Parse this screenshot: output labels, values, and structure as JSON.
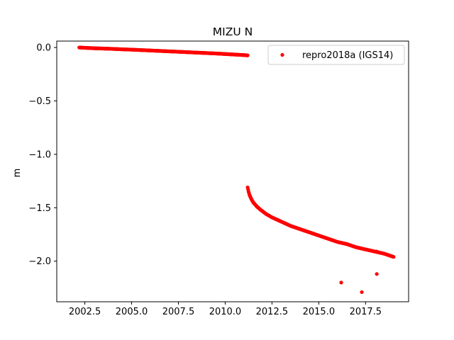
{
  "chart_data": {
    "type": "scatter",
    "title": "MIZU N",
    "xlabel": "",
    "ylabel": "m",
    "xlim": [
      2001.0,
      2019.8
    ],
    "ylim": [
      -2.38,
      0.06
    ],
    "xticks": [
      2002.5,
      2005.0,
      2007.5,
      2010.0,
      2012.5,
      2015.0,
      2017.5
    ],
    "xtick_labels": [
      "2002.5",
      "2005.0",
      "2007.5",
      "2010.0",
      "2012.5",
      "2015.0",
      "2017.5"
    ],
    "yticks": [
      0.0,
      -0.5,
      -1.0,
      -1.5,
      -2.0
    ],
    "ytick_labels": [
      "0.0",
      "−0.5",
      "−1.0",
      "−1.5",
      "−2.0"
    ],
    "grid": false,
    "legend_position": "top-right",
    "series": [
      {
        "name": "repro2018a (IGS14)",
        "color": "#ff0000",
        "marker": "circle",
        "segments": [
          {
            "x": [
              2002.2,
              2002.5,
              2003.0,
              2003.5,
              2004.0,
              2004.5,
              2005.0,
              2005.5,
              2006.0,
              2006.5,
              2007.0,
              2007.5,
              2008.0,
              2008.5,
              2009.0,
              2009.5,
              2010.0,
              2010.5,
              2011.0,
              2011.2
            ],
            "y": [
              0.0,
              -0.003,
              -0.007,
              -0.01,
              -0.013,
              -0.017,
              -0.02,
              -0.024,
              -0.028,
              -0.032,
              -0.036,
              -0.04,
              -0.044,
              -0.048,
              -0.052,
              -0.056,
              -0.061,
              -0.066,
              -0.071,
              -0.074
            ]
          },
          {
            "x": [
              2011.2,
              2011.25,
              2011.3,
              2011.4,
              2011.5,
              2011.7,
              2011.9,
              2012.2,
              2012.5,
              2013.0,
              2013.5,
              2014.0,
              2014.5,
              2015.0,
              2015.5,
              2016.0,
              2016.5,
              2017.0,
              2017.5,
              2018.0,
              2018.5,
              2019.0
            ],
            "y": [
              -1.31,
              -1.35,
              -1.38,
              -1.42,
              -1.45,
              -1.49,
              -1.52,
              -1.56,
              -1.59,
              -1.63,
              -1.67,
              -1.7,
              -1.73,
              -1.76,
              -1.79,
              -1.82,
              -1.84,
              -1.87,
              -1.89,
              -1.91,
              -1.93,
              -1.96
            ]
          }
        ],
        "outliers": {
          "x": [
            2016.2,
            2017.3,
            2018.1,
            2018.1
          ],
          "y": [
            -2.2,
            -2.29,
            -2.12,
            -1.91
          ]
        }
      }
    ]
  }
}
